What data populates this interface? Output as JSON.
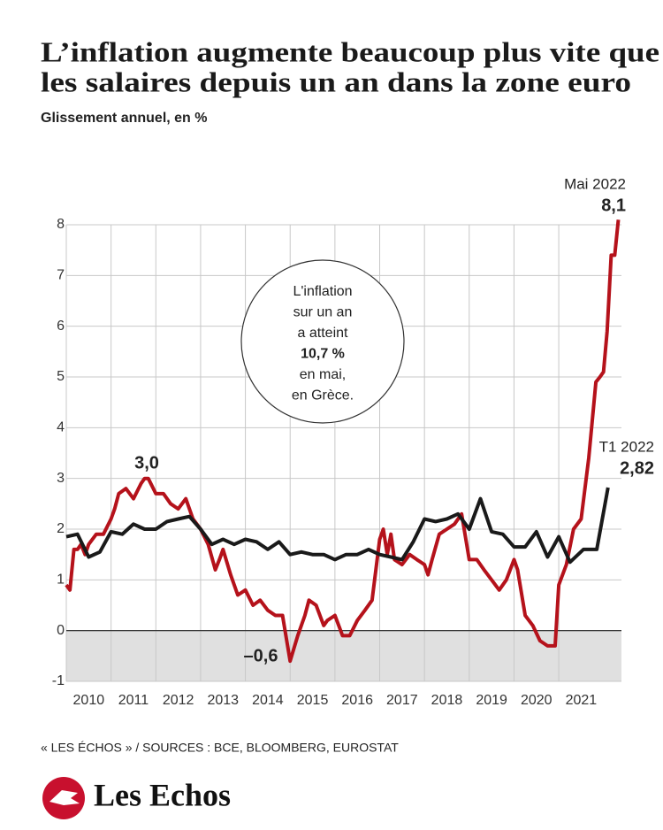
{
  "chart_data": {
    "type": "line",
    "title": [
      "L’inflation augmente beaucoup plus vite que",
      "les salaires depuis un an dans la zone euro"
    ],
    "subtitle": "Glissement annuel, en %",
    "xlim": [
      2010,
      2022.4
    ],
    "xticks": [
      2010,
      2011,
      2012,
      2013,
      2014,
      2015,
      2016,
      2017,
      2018,
      2019,
      2020,
      2021
    ],
    "ylim": [
      -1,
      8
    ],
    "yticks": [
      -1,
      0,
      1,
      2,
      3,
      4,
      5,
      6,
      7,
      8
    ],
    "grid": true,
    "series": [
      {
        "color": "#b5121b",
        "x": [
          2010.0,
          2010.08,
          2010.17,
          2010.25,
          2010.33,
          2010.42,
          2010.5,
          2010.67,
          2010.83,
          2011.0,
          2011.08,
          2011.17,
          2011.33,
          2011.5,
          2011.67,
          2011.75,
          2011.83,
          2012.0,
          2012.17,
          2012.33,
          2012.5,
          2012.67,
          2012.83,
          2013.0,
          2013.17,
          2013.33,
          2013.42,
          2013.5,
          2013.67,
          2013.83,
          2014.0,
          2014.17,
          2014.33,
          2014.5,
          2014.67,
          2014.83,
          2015.0,
          2015.17,
          2015.33,
          2015.42,
          2015.58,
          2015.75,
          2015.83,
          2016.0,
          2016.17,
          2016.33,
          2016.5,
          2016.67,
          2016.83,
          2017.0,
          2017.08,
          2017.17,
          2017.25,
          2017.33,
          2017.5,
          2017.67,
          2017.83,
          2018.0,
          2018.08,
          2018.17,
          2018.33,
          2018.5,
          2018.67,
          2018.83,
          2019.0,
          2019.17,
          2019.33,
          2019.5,
          2019.67,
          2019.83,
          2020.0,
          2020.08,
          2020.25,
          2020.42,
          2020.58,
          2020.75,
          2020.92,
          2021.0,
          2021.17,
          2021.33,
          2021.5,
          2021.67,
          2021.83,
          2021.92,
          2022.0,
          2022.08,
          2022.17,
          2022.25,
          2022.33
        ],
        "values": [
          0.9,
          0.8,
          1.6,
          1.6,
          1.7,
          1.5,
          1.7,
          1.9,
          1.9,
          2.2,
          2.4,
          2.7,
          2.8,
          2.6,
          2.9,
          3.0,
          3.0,
          2.7,
          2.7,
          2.5,
          2.4,
          2.6,
          2.2,
          2.0,
          1.7,
          1.2,
          1.4,
          1.6,
          1.1,
          0.7,
          0.8,
          0.5,
          0.6,
          0.4,
          0.3,
          0.3,
          -0.6,
          -0.1,
          0.3,
          0.6,
          0.5,
          0.1,
          0.2,
          0.3,
          -0.1,
          -0.1,
          0.2,
          0.4,
          0.6,
          1.8,
          2.0,
          1.5,
          1.9,
          1.4,
          1.3,
          1.5,
          1.4,
          1.3,
          1.1,
          1.4,
          1.9,
          2.0,
          2.1,
          2.3,
          1.4,
          1.4,
          1.2,
          1.0,
          0.8,
          1.0,
          1.4,
          1.2,
          0.3,
          0.1,
          -0.2,
          -0.3,
          -0.3,
          0.9,
          1.3,
          2.0,
          2.2,
          3.4,
          4.9,
          5.0,
          5.1,
          5.9,
          7.4,
          7.4,
          8.1
        ]
      },
      {
        "color": "#1a1a1a",
        "x": [
          2010.0,
          2010.25,
          2010.5,
          2010.75,
          2011.0,
          2011.25,
          2011.5,
          2011.75,
          2012.0,
          2012.25,
          2012.5,
          2012.75,
          2013.0,
          2013.25,
          2013.5,
          2013.75,
          2014.0,
          2014.25,
          2014.5,
          2014.75,
          2015.0,
          2015.25,
          2015.5,
          2015.75,
          2016.0,
          2016.25,
          2016.5,
          2016.75,
          2017.0,
          2017.25,
          2017.5,
          2017.75,
          2018.0,
          2018.25,
          2018.5,
          2018.75,
          2019.0,
          2019.25,
          2019.5,
          2019.75,
          2020.0,
          2020.25,
          2020.5,
          2020.75,
          2021.0,
          2021.25,
          2021.55,
          2021.85,
          2022.1
        ],
        "values": [
          1.85,
          1.9,
          1.45,
          1.55,
          1.95,
          1.9,
          2.1,
          2.0,
          2.0,
          2.15,
          2.2,
          2.25,
          2.0,
          1.7,
          1.8,
          1.7,
          1.8,
          1.75,
          1.6,
          1.75,
          1.5,
          1.55,
          1.5,
          1.5,
          1.4,
          1.5,
          1.5,
          1.6,
          1.5,
          1.45,
          1.4,
          1.75,
          2.2,
          2.15,
          2.2,
          2.3,
          2.0,
          2.6,
          1.95,
          1.9,
          1.65,
          1.65,
          1.95,
          1.45,
          1.85,
          1.35,
          1.6,
          1.6,
          2.82
        ]
      }
    ],
    "annotations": [
      "Mai 2022",
      "8,1",
      "T1 2022",
      "2,82",
      "3,0",
      "–0,6"
    ],
    "bubble": [
      "L'inflation",
      "sur un an",
      "a atteint",
      "10,7 %",
      "en mai,",
      "en Grèce."
    ],
    "source": "« LES ÉCHOS » / SOURCES : BCE, BLOOMBERG, EUROSTAT",
    "logo": "Les Echos"
  }
}
